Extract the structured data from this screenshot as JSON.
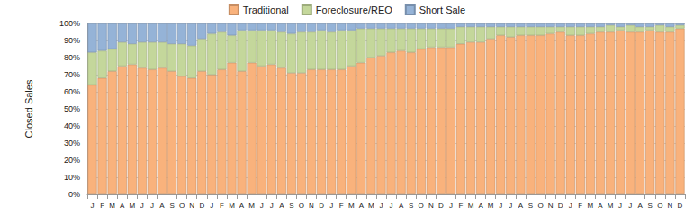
{
  "chart_data": {
    "type": "bar",
    "stacked": true,
    "grid": true,
    "legend": "top",
    "y_label": "Closed Sales",
    "categories": [
      "J",
      "F",
      "M",
      "A",
      "M",
      "J",
      "J",
      "A",
      "S",
      "O",
      "N",
      "D",
      "J",
      "F",
      "M",
      "A",
      "M",
      "J",
      "J",
      "A",
      "S",
      "O",
      "N",
      "D",
      "J",
      "F",
      "M",
      "A",
      "M",
      "J",
      "J",
      "A",
      "S",
      "O",
      "N",
      "D",
      "J",
      "F",
      "M",
      "A",
      "M",
      "J",
      "J",
      "A",
      "S",
      "O",
      "N",
      "D",
      "J",
      "F",
      "M",
      "A",
      "M",
      "J",
      "J",
      "A",
      "S",
      "O",
      "N",
      "D"
    ],
    "series": [
      {
        "name": "Traditional",
        "color": "#F9B27C",
        "values": [
          64,
          68,
          72,
          75,
          76,
          74,
          73,
          74,
          72,
          69,
          68,
          72,
          70,
          73,
          77,
          72,
          77,
          75,
          76,
          74,
          71,
          71,
          73,
          73,
          73,
          73,
          75,
          77,
          80,
          81,
          83,
          84,
          83,
          85,
          86,
          86,
          86,
          88,
          89,
          89,
          91,
          93,
          92,
          93,
          93,
          93,
          94,
          95,
          93,
          93,
          94,
          95,
          95,
          96,
          95,
          95,
          96,
          95,
          95,
          97
        ]
      },
      {
        "name": "Foreclosure/REO",
        "color": "#C4D79B",
        "values": [
          19,
          16,
          13,
          14,
          12,
          15,
          16,
          15,
          16,
          19,
          19,
          19,
          24,
          22,
          16,
          24,
          19,
          21,
          20,
          21,
          23,
          24,
          22,
          23,
          22,
          23,
          21,
          20,
          17,
          16,
          14,
          13,
          14,
          12,
          11,
          11,
          11,
          10,
          9,
          9,
          7,
          5,
          6,
          5,
          5,
          5,
          4,
          3,
          5,
          5,
          4,
          3,
          4,
          2,
          4,
          3,
          2,
          4,
          3,
          2
        ]
      },
      {
        "name": "Short Sale",
        "color": "#95B3D7",
        "values": [
          17,
          16,
          15,
          11,
          12,
          11,
          11,
          11,
          12,
          12,
          13,
          9,
          6,
          5,
          7,
          4,
          4,
          4,
          4,
          5,
          6,
          5,
          5,
          4,
          5,
          4,
          4,
          3,
          3,
          3,
          3,
          3,
          3,
          3,
          3,
          3,
          3,
          2,
          2,
          2,
          2,
          2,
          2,
          2,
          2,
          2,
          2,
          2,
          2,
          2,
          2,
          2,
          1,
          2,
          1,
          2,
          2,
          1,
          2,
          1
        ]
      }
    ],
    "ylim": [
      0,
      100
    ],
    "yticks": [
      {
        "value": 0,
        "label": "0%"
      },
      {
        "value": 10,
        "label": "10%"
      },
      {
        "value": 20,
        "label": "20%"
      },
      {
        "value": 30,
        "label": "30%"
      },
      {
        "value": 40,
        "label": "40%"
      },
      {
        "value": 50,
        "label": "50%"
      },
      {
        "value": 60,
        "label": "60%"
      },
      {
        "value": 70,
        "label": "70%"
      },
      {
        "value": 80,
        "label": "80%"
      },
      {
        "value": 90,
        "label": "90%"
      },
      {
        "value": 100,
        "label": "100%"
      }
    ]
  }
}
